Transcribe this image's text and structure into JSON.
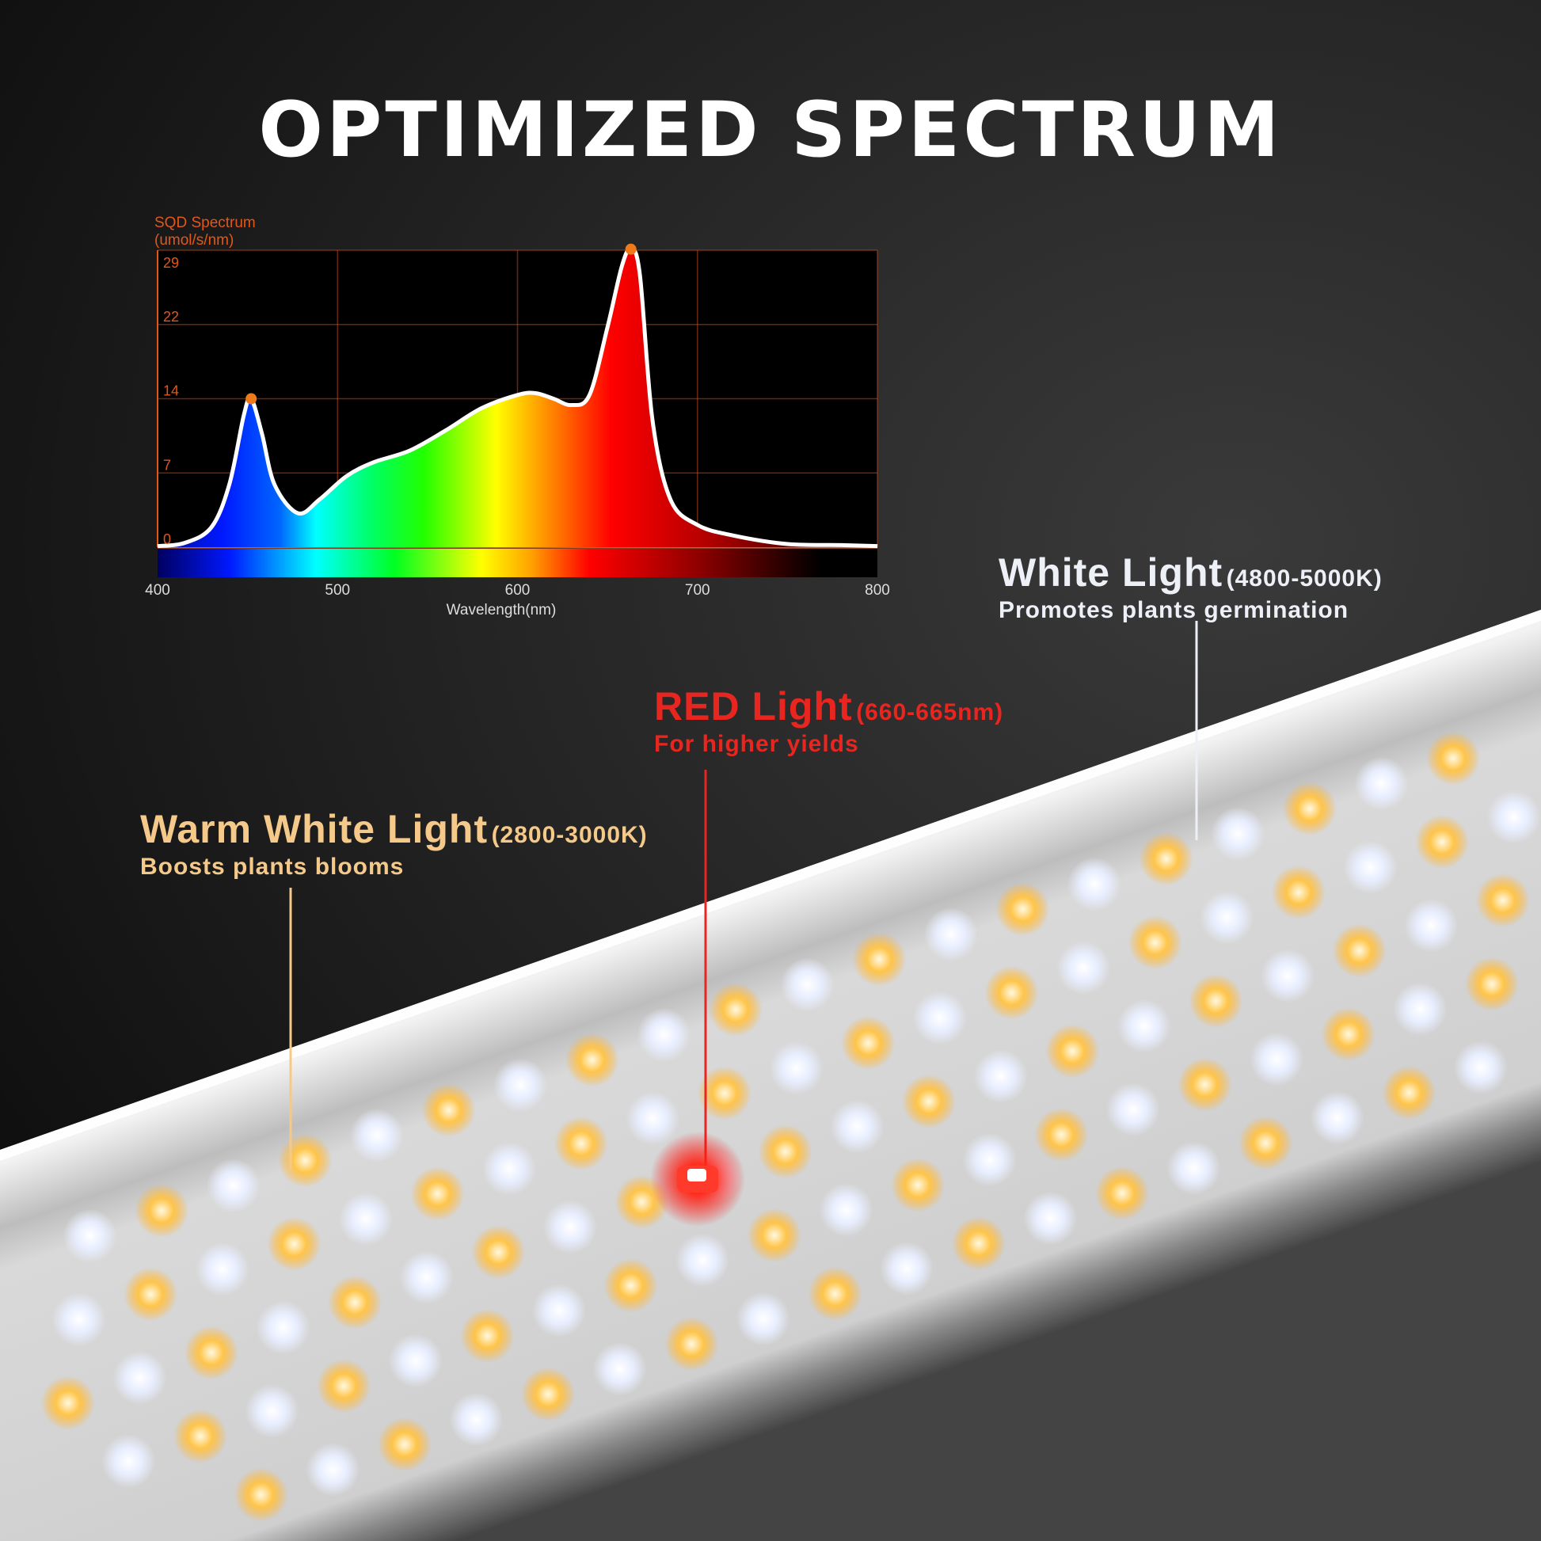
{
  "title": "OPTIMIZED SPECTRUM",
  "chart_data": {
    "type": "area",
    "ylabel_line1": "SQD Spectrum",
    "ylabel_line2": "(umol/s/nm)",
    "xlabel": "Wavelength(nm)",
    "xlim": [
      400,
      800
    ],
    "ylim": [
      0,
      29
    ],
    "xticks": [
      400,
      500,
      600,
      700,
      800
    ],
    "yticks": [
      0,
      7,
      14,
      22,
      29
    ],
    "grid": true,
    "x": [
      400,
      415,
      430,
      440,
      448,
      452,
      458,
      465,
      478,
      490,
      505,
      520,
      540,
      560,
      580,
      600,
      610,
      620,
      630,
      640,
      650,
      658,
      663,
      668,
      675,
      685,
      700,
      720,
      750,
      780,
      800
    ],
    "y": [
      0.1,
      0.4,
      1.9,
      6,
      12.5,
      14,
      10.7,
      5.9,
      3.2,
      4.5,
      6.7,
      8,
      9.1,
      11,
      13.1,
      14.4,
      14.6,
      14,
      13.4,
      14.4,
      21.7,
      27.5,
      29.1,
      26.7,
      12,
      4.5,
      2.1,
      1.1,
      0.3,
      0.2,
      0.1
    ],
    "peaks": [
      {
        "x": 452,
        "y": 14
      },
      {
        "x": 663,
        "y": 29.1
      }
    ],
    "colors": {
      "axis": "#e2561b",
      "line": "#ffffff",
      "peak": "#f07a1a"
    }
  },
  "labels": {
    "warm": {
      "title": "Warm White Light",
      "range": "(2800-3000K)",
      "desc": "Boosts plants blooms",
      "color": "#f5c98a"
    },
    "red": {
      "title": "RED Light",
      "range": "(660-665nm)",
      "desc": "For higher yields",
      "color": "#e8261f"
    },
    "white": {
      "title": "White Light",
      "range": "(4800-5000K)",
      "desc": "Promotes plants germination",
      "color": "#eef0f8"
    }
  }
}
